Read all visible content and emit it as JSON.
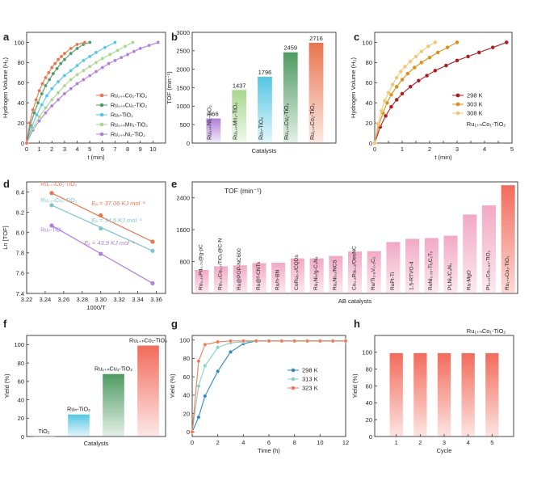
{
  "figure": {
    "panels": [
      {
        "letter": "a"
      },
      {
        "letter": "b"
      },
      {
        "letter": "c"
      },
      {
        "letter": "d"
      },
      {
        "letter": "e"
      },
      {
        "letter": "f"
      },
      {
        "letter": "g"
      },
      {
        "letter": "h"
      }
    ]
  },
  "colors": {
    "ruco": "#e8754f",
    "rucu": "#4f9a62",
    "ru": "#55c6e3",
    "rumn": "#a9d68f",
    "runi": "#b07fd8",
    "k298": "#a81c1c",
    "k303": "#d99018",
    "k308": "#f0c878",
    "g298": "#2f88bf",
    "g313": "#86d0c8",
    "g323": "#ef7c58",
    "pink": "#f2a9c3",
    "redbar": "#f26b5b"
  },
  "chart_data": [
    {
      "id": "a",
      "type": "line",
      "xlabel": "t (min)",
      "ylabel": "Hydrogen Volume (H₂)",
      "xlim": [
        0,
        11
      ],
      "ylim": [
        0,
        110
      ],
      "xticks": [
        0,
        1,
        2,
        3,
        4,
        5,
        6,
        7,
        8,
        9,
        10
      ],
      "yticks": [
        0,
        20,
        40,
        60,
        80,
        100
      ],
      "series": [
        {
          "name": "Ru₁₊ₙCo₁-TiO₂",
          "color": "#e8754f",
          "x": [
            0,
            0.25,
            0.5,
            0.75,
            1,
            1.25,
            1.5,
            1.75,
            2,
            2.25,
            2.5,
            2.75,
            3,
            3.5,
            4,
            4.6
          ],
          "y": [
            0,
            20,
            33,
            43,
            52,
            59,
            65,
            70,
            75,
            79,
            83,
            86,
            89,
            94,
            98,
            100
          ]
        },
        {
          "name": "Ru₁₊ₙCu₁-TiO₂",
          "color": "#4f9a62",
          "x": [
            0,
            0.3,
            0.6,
            0.9,
            1.2,
            1.5,
            1.8,
            2.1,
            2.4,
            2.7,
            3,
            3.5,
            4,
            4.5,
            5
          ],
          "y": [
            0,
            18,
            30,
            40,
            49,
            57,
            63,
            69,
            74,
            79,
            83,
            89,
            94,
            98,
            100
          ]
        },
        {
          "name": "Ruₙ-TiO₂",
          "color": "#55c6e3",
          "x": [
            0,
            0.4,
            0.8,
            1.2,
            1.6,
            2,
            2.5,
            3,
            3.5,
            4,
            4.5,
            5,
            5.5,
            6.2,
            7
          ],
          "y": [
            0,
            16,
            28,
            38,
            47,
            54,
            61,
            67,
            72,
            77,
            82,
            86,
            90,
            95,
            100
          ]
        },
        {
          "name": "Ru₁₊ₙMn₁-TiO₂",
          "color": "#a9d68f",
          "x": [
            0,
            0.5,
            1,
            1.5,
            2,
            2.5,
            3,
            3.5,
            4,
            4.5,
            5,
            5.5,
            6,
            6.6,
            7.2,
            7.8,
            8.4
          ],
          "y": [
            0,
            15,
            26,
            35,
            43,
            50,
            57,
            63,
            68,
            72,
            76,
            80,
            84,
            88,
            92,
            96,
            100
          ]
        },
        {
          "name": "Ru₁₊ₙNi₁-TiO₂",
          "color": "#b07fd8",
          "x": [
            0,
            0.5,
            1,
            1.5,
            2,
            2.5,
            3,
            3.5,
            4,
            4.5,
            5,
            5.5,
            6,
            6.5,
            7,
            7.5,
            8,
            8.5,
            9,
            9.7,
            10.4
          ],
          "y": [
            0,
            13,
            22,
            30,
            37,
            43,
            49,
            54,
            59,
            63,
            67,
            71,
            75,
            79,
            82,
            85,
            88,
            91,
            94,
            97,
            100
          ]
        }
      ]
    },
    {
      "id": "b",
      "type": "bar",
      "title": "",
      "xlabel": "Catalysts",
      "ylabel": "TOF (min⁻¹)",
      "ylim": [
        0,
        3000
      ],
      "yticks": [
        0,
        500,
        1000,
        1500,
        2000,
        2500,
        3000
      ],
      "categories": [
        "Ru₁₊ₙNi₁-TiO₂",
        "Ru₁₊ₙMn₁-TiO₂",
        "Ruₙ-TiO₂",
        "Ru₁₊ₙCu₁-TiO₂",
        "Ru₁₊ₙCo₁-TiO₂"
      ],
      "values": [
        666,
        1437,
        1796,
        2459,
        2716
      ],
      "value_labels": [
        "666",
        "1437",
        "1796",
        "2459",
        "2716"
      ],
      "colors": [
        "#b07fd8",
        "#a9d68f",
        "#55c6e3",
        "#4f9a62",
        "#e8754f"
      ]
    },
    {
      "id": "c",
      "type": "line",
      "xlabel": "t (min)",
      "ylabel": "Hydrogen Volume (H₂)",
      "annotation": "Ru₁₊ₙCo₁-TiO₂",
      "xlim": [
        0,
        5
      ],
      "ylim": [
        0,
        110
      ],
      "xticks": [
        0,
        0.5,
        1,
        1.5,
        2,
        2.5,
        3,
        3.5,
        4,
        4.5,
        5
      ],
      "xtick_labels": [
        "0",
        "",
        "1",
        "",
        "2",
        "",
        "3",
        "",
        "4",
        "",
        "5"
      ],
      "yticks": [
        0,
        20,
        40,
        60,
        80,
        100
      ],
      "series": [
        {
          "name": "298 K",
          "color": "#a81c1c",
          "x": [
            0,
            0.2,
            0.4,
            0.6,
            0.8,
            1,
            1.3,
            1.6,
            1.9,
            2.2,
            2.6,
            3,
            3.4,
            3.8,
            4.3,
            4.8
          ],
          "y": [
            0,
            16,
            27,
            36,
            43,
            49,
            56,
            62,
            67,
            72,
            77,
            82,
            86,
            90,
            95,
            100
          ]
        },
        {
          "name": "303 K",
          "color": "#d99018",
          "x": [
            0,
            0.15,
            0.3,
            0.45,
            0.6,
            0.8,
            1,
            1.2,
            1.45,
            1.7,
            2,
            2.3,
            2.65,
            3
          ],
          "y": [
            0,
            18,
            30,
            40,
            48,
            56,
            63,
            69,
            75,
            80,
            85,
            90,
            95,
            100
          ]
        },
        {
          "name": "308 K",
          "color": "#f0c878",
          "x": [
            0,
            0.12,
            0.24,
            0.36,
            0.5,
            0.65,
            0.8,
            0.95,
            1.1,
            1.3,
            1.5,
            1.7,
            1.95,
            2.2
          ],
          "y": [
            0,
            19,
            32,
            42,
            50,
            58,
            65,
            71,
            76,
            81,
            86,
            91,
            96,
            100
          ]
        }
      ]
    },
    {
      "id": "d",
      "type": "scatter",
      "xlabel": "1000/T",
      "ylabel": "Ln [TOF]",
      "xlim": [
        3.22,
        3.37
      ],
      "ylim": [
        7.4,
        8.5
      ],
      "xticks": [
        3.22,
        3.24,
        3.26,
        3.28,
        3.3,
        3.32,
        3.34,
        3.36
      ],
      "xtick_labels": [
        "3.22",
        "3.24",
        "3.26",
        "3.28",
        "3.30",
        "3.32",
        "3.34",
        "3.36"
      ],
      "yticks": [
        7.4,
        7.6,
        7.8,
        8.0,
        8.2,
        8.4
      ],
      "ytick_labels": [
        "7.4",
        "7.6",
        "7.8",
        "8.0",
        "8.2",
        "8.4"
      ],
      "series": [
        {
          "name": "Ru₁₊ₙCo₁-TiO₂",
          "color": "#e8754f",
          "x": [
            3.247,
            3.3,
            3.356
          ],
          "y": [
            8.39,
            8.17,
            7.91
          ],
          "ea": "Eₐ = 37.06 KJ mol⁻¹"
        },
        {
          "name": "Ru₁₊ₙCu₁-TiO₂",
          "color": "#7fc4cc",
          "x": [
            3.247,
            3.3,
            3.356
          ],
          "y": [
            8.27,
            8.04,
            7.82
          ],
          "ea": "Eₐ = 34.5 KJ mol⁻¹"
        },
        {
          "name": "Ruₙ-TiO₂",
          "color": "#b07fd8",
          "x": [
            3.247,
            3.3,
            3.356
          ],
          "y": [
            8.07,
            7.79,
            7.5
          ],
          "ea": "Eₐ = 43.9 KJ mol⁻¹"
        }
      ]
    },
    {
      "id": "e",
      "type": "bar",
      "title": "TOF (min⁻¹)",
      "xlabel": "AB catalysts",
      "ylim": [
        0,
        2800
      ],
      "yticks": [
        800,
        1600,
        2400
      ],
      "categories": [
        "Ru₀.₂₅Pd₀.₇₅@g-pC",
        "Ru₀.₃Cu₀.₇/TiO₂@C-N",
        "Ru@POP-NC600",
        "Ru@f-CNTs",
        "Ru/h-BN",
        "CoRu₀.₅/CQDs",
        "Ru₁Ni₇/g-C₃N₄",
        "Ru₁Ni₇₀/NCS",
        "Co₀.₈Ru₀.₂/OesNC",
        "Ru/Ti₂.₈V₀.₂C₂",
        "RuPt-Ti",
        "1.5-RTVO-4",
        "RuNi₀.₅₅-Ti₃C₂Tₓ",
        "Pt₁Ni₁/C₃N₄",
        "Ru-MgO",
        "Pt₀.₁₅Co₀.₈₅-TiO₂",
        "Ru₁₊ₙCo₁-TiO₂"
      ],
      "values": [
        590,
        680,
        705,
        760,
        770,
        880,
        880,
        940,
        1050,
        1060,
        1290,
        1370,
        1390,
        1450,
        1980,
        2210,
        2716
      ],
      "colors": [
        "#f2a9c3",
        "#f2a9c3",
        "#f2a9c3",
        "#f2a9c3",
        "#f2a9c3",
        "#f2a9c3",
        "#f2a9c3",
        "#f2a9c3",
        "#f2a9c3",
        "#f2a9c3",
        "#f2a9c3",
        "#f2a9c3",
        "#f2a9c3",
        "#f2a9c3",
        "#f2a9c3",
        "#f2a9c3",
        "#f26b5b"
      ]
    },
    {
      "id": "f",
      "type": "bar",
      "xlabel": "Catalysts",
      "ylabel": "Yield (%)",
      "ylim": [
        0,
        110
      ],
      "yticks": [
        0,
        20,
        40,
        60,
        80,
        100
      ],
      "categories": [
        "TiO₂",
        "Ruₙ-TiO₂",
        "Ru₁₊ₙCu₁-TiO₂",
        "Ru₁₊ₙCo₁-TiO₂"
      ],
      "values": [
        0,
        24,
        68,
        99
      ],
      "colors": [
        "#cccccc",
        "#55c6e3",
        "#4f9a62",
        "#f26b5b"
      ]
    },
    {
      "id": "g",
      "type": "line",
      "xlabel": "Time (h)",
      "ylabel": "Yield (%)",
      "xlim": [
        0,
        12
      ],
      "ylim": [
        -5,
        105
      ],
      "xticks": [
        0,
        2,
        4,
        6,
        8,
        10,
        12
      ],
      "yticks": [
        0,
        20,
        40,
        60,
        80,
        100
      ],
      "series": [
        {
          "name": "298 K",
          "color": "#2f88bf",
          "x": [
            0,
            0.5,
            1,
            2,
            3,
            4,
            5,
            6,
            7,
            8,
            9,
            10,
            11,
            12
          ],
          "y": [
            0,
            16,
            39,
            66,
            87,
            96,
            99,
            99,
            99,
            99,
            99,
            99,
            99,
            99
          ]
        },
        {
          "name": "313 K",
          "color": "#86d0c8",
          "x": [
            0,
            0.5,
            1,
            2,
            3,
            4,
            5,
            6,
            7,
            8,
            9,
            10,
            11,
            12
          ],
          "y": [
            0,
            50,
            72,
            92,
            97,
            98,
            99,
            99,
            99,
            99,
            99,
            99,
            99,
            99
          ]
        },
        {
          "name": "323 K",
          "color": "#ef7c58",
          "x": [
            0,
            0.5,
            1,
            2,
            3,
            4,
            5,
            6,
            7,
            8,
            9,
            10,
            11,
            12
          ],
          "y": [
            0,
            77,
            95,
            98,
            99,
            99,
            99,
            99,
            99,
            99,
            99,
            99,
            99,
            99
          ]
        }
      ]
    },
    {
      "id": "h",
      "type": "bar",
      "xlabel": "Cycle",
      "ylabel": "Yield (%)",
      "annotation": "Ru₁₊ₙCo₁-TiO₂",
      "ylim": [
        0,
        120
      ],
      "yticks": [
        0,
        20,
        40,
        60,
        80,
        100
      ],
      "categories": [
        "1",
        "2",
        "3",
        "4",
        "5"
      ],
      "values": [
        99,
        99,
        99,
        99,
        99
      ],
      "colors": [
        "#f26b5b",
        "#f26b5b",
        "#f26b5b",
        "#f26b5b",
        "#f26b5b"
      ]
    }
  ]
}
